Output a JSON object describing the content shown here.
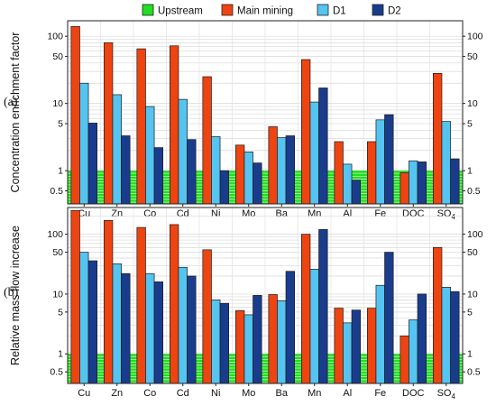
{
  "chart_data": {
    "type": "bar",
    "log_scale": true,
    "grid": true,
    "legend": {
      "placement": "top",
      "entries": [
        {
          "name": "Upstream",
          "color": "#22dd22"
        },
        {
          "name": "Main mining",
          "color": "#ee4411"
        },
        {
          "name": "D1",
          "color": "#55c4f0"
        },
        {
          "name": "D2",
          "color": "#1a3c8c"
        }
      ]
    },
    "categories": [
      "Cu",
      "Zn",
      "Co",
      "Cd",
      "Ni",
      "Mo",
      "Ba",
      "Mn",
      "Al",
      "Fe",
      "DOC",
      "SO4"
    ],
    "category_labels": [
      {
        "base": "Cu",
        "sub": ""
      },
      {
        "base": "Zn",
        "sub": ""
      },
      {
        "base": "Co",
        "sub": ""
      },
      {
        "base": "Cd",
        "sub": ""
      },
      {
        "base": "Ni",
        "sub": ""
      },
      {
        "base": "Mo",
        "sub": ""
      },
      {
        "base": "Ba",
        "sub": ""
      },
      {
        "base": "Mn",
        "sub": ""
      },
      {
        "base": "Al",
        "sub": ""
      },
      {
        "base": "Fe",
        "sub": ""
      },
      {
        "base": "DOC",
        "sub": ""
      },
      {
        "base": "SO",
        "sub": "4"
      }
    ],
    "panels": [
      {
        "label": "(a)",
        "ylabel": "Concentration enrichment factor",
        "ylim": [
          0.32,
          170
        ],
        "ticks": [
          0.5,
          1,
          5,
          10,
          50,
          100
        ],
        "tick_labels": [
          "0.5",
          "1",
          "5",
          "10",
          "50",
          "100"
        ],
        "upstream_value": 1,
        "series": [
          {
            "name": "Main mining",
            "values": [
              140,
              80,
              65,
              72,
              25,
              2.4,
              4.5,
              45,
              2.7,
              2.7,
              0.93,
              28
            ]
          },
          {
            "name": "D1",
            "values": [
              20,
              13.5,
              9,
              11.5,
              3.2,
              1.9,
              3.1,
              10.5,
              1.25,
              5.7,
              1.4,
              5.4
            ]
          },
          {
            "name": "D2",
            "values": [
              5.1,
              3.3,
              2.2,
              2.9,
              1.0,
              1.3,
              3.3,
              17,
              0.72,
              6.8,
              1.35,
              1.5
            ]
          }
        ]
      },
      {
        "label": "(b)",
        "ylabel": "Relative mass flow increase",
        "ylim": [
          0.32,
          280
        ],
        "ticks": [
          0.5,
          1,
          5,
          10,
          50,
          100
        ],
        "tick_labels": [
          "0.5",
          "1",
          "5",
          "10",
          "50",
          "100"
        ],
        "upstream_value": 1,
        "series": [
          {
            "name": "Main mining",
            "values": [
              250,
              170,
              130,
              145,
              55,
              5.3,
              9.8,
              100,
              5.8,
              5.8,
              2.0,
              60
            ]
          },
          {
            "name": "D1",
            "values": [
              50,
              32,
              22,
              28,
              8,
              4.5,
              7.7,
              26,
              3.3,
              14,
              3.7,
              13
            ]
          },
          {
            "name": "D2",
            "values": [
              36,
              22,
              16,
              20,
              7,
              9.5,
              24,
              120,
              5.4,
              50,
              10,
              11
            ]
          }
        ]
      }
    ]
  }
}
